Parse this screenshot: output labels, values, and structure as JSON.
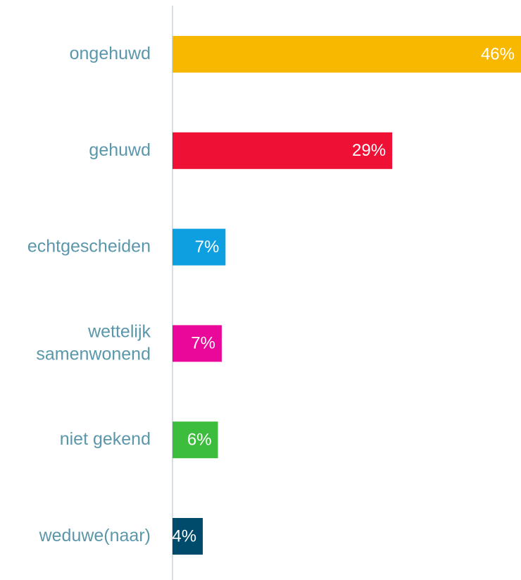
{
  "chart_data": {
    "type": "bar",
    "orientation": "horizontal",
    "categories": [
      "ongehuwd",
      "gehuwd",
      "echtgescheiden",
      "wettelijk\nsamenwonend",
      "niet gekend",
      "weduwe(naar)"
    ],
    "values": [
      46,
      29,
      7,
      6.5,
      6,
      4
    ],
    "value_labels": [
      "46%",
      "29%",
      "7%",
      "7%",
      "6%",
      "4%"
    ],
    "colors": [
      "#f9b800",
      "#ef1035",
      "#0e9fe0",
      "#e9089a",
      "#3dbd3d",
      "#004b6b"
    ],
    "xlim": [
      0,
      46
    ]
  }
}
